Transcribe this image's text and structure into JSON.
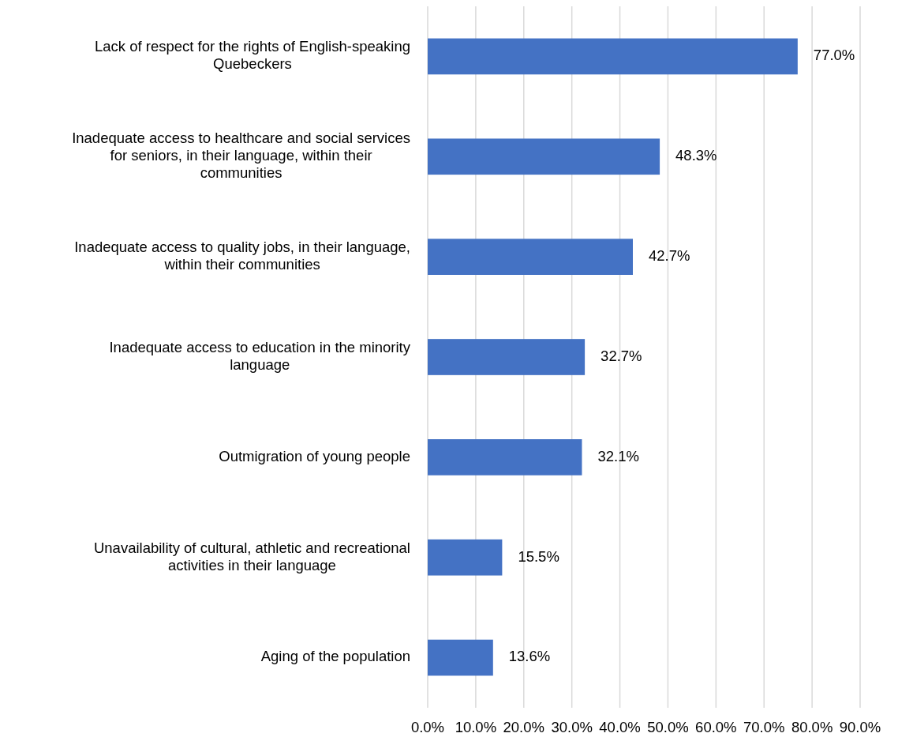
{
  "chart_data": {
    "type": "bar",
    "orientation": "horizontal",
    "categories": [
      "Lack of respect for the rights of English-speaking Quebeckers",
      "Inadequate access to healthcare and social services for seniors, in their language, within their communities",
      "Inadequate access to quality jobs, in their language, within their communities",
      "Inadequate access to education in the minority language",
      "Outmigration of young people",
      "Unavailability of cultural, athletic and recreational activities in their language",
      "Aging of the population"
    ],
    "values": [
      77.0,
      48.3,
      42.7,
      32.7,
      32.1,
      15.5,
      13.6
    ],
    "color": "#4472c4",
    "value_labels": [
      "77.0%",
      "48.3%",
      "42.7%",
      "32.7%",
      "32.1%",
      "15.5%",
      "13.6%"
    ],
    "xlim": [
      0,
      90
    ],
    "xticks": [
      {
        "value": 0,
        "label": "0.0%"
      },
      {
        "value": 10,
        "label": "10.0%"
      },
      {
        "value": 20,
        "label": "20.0%"
      },
      {
        "value": 30,
        "label": "30.0%"
      },
      {
        "value": 40,
        "label": "40.0%"
      },
      {
        "value": 50,
        "label": "50.0%"
      },
      {
        "value": 60,
        "label": "60.0%"
      },
      {
        "value": 70,
        "label": "70.0%"
      },
      {
        "value": 80,
        "label": "80.0%"
      },
      {
        "value": 90,
        "label": "90.0%"
      }
    ],
    "grid": "x"
  }
}
